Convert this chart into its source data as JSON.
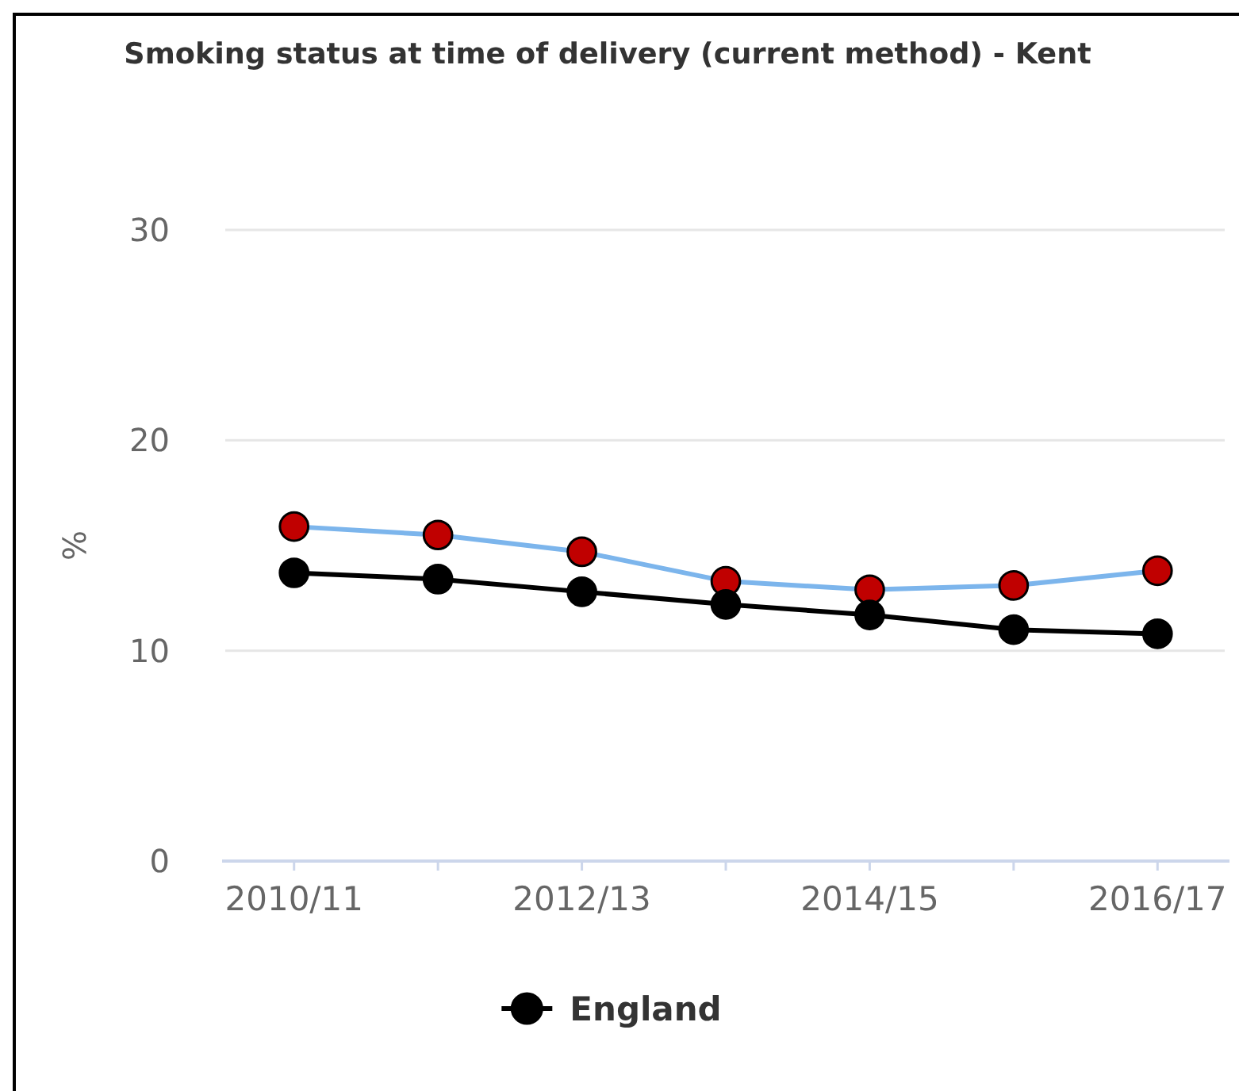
{
  "chart_data": {
    "type": "line",
    "title": "Smoking status at time of delivery (current method) - Kent",
    "ylabel": "%",
    "categories": [
      "2010/11",
      null,
      "2012/13",
      null,
      "2014/15",
      null,
      "2016/17"
    ],
    "series": [
      {
        "color": "#7cb5ec",
        "colors": [
          "#c00000",
          "#c00000",
          "#c00000",
          "#c00000",
          "#c00000",
          "#c00000",
          "#c00000"
        ],
        "values": [
          15.9,
          15.5,
          14.7,
          13.3,
          12.9,
          13.1,
          13.8
        ]
      },
      {
        "name": "England",
        "color": "#000000",
        "values": [
          13.7,
          13.4,
          12.8,
          12.2,
          11.7,
          11.0,
          10.8
        ]
      }
    ],
    "ylim": [
      0,
      30
    ],
    "yticks": [
      0,
      10,
      20,
      30
    ],
    "grid": "y",
    "legend": "bottom",
    "marker": "circle"
  }
}
